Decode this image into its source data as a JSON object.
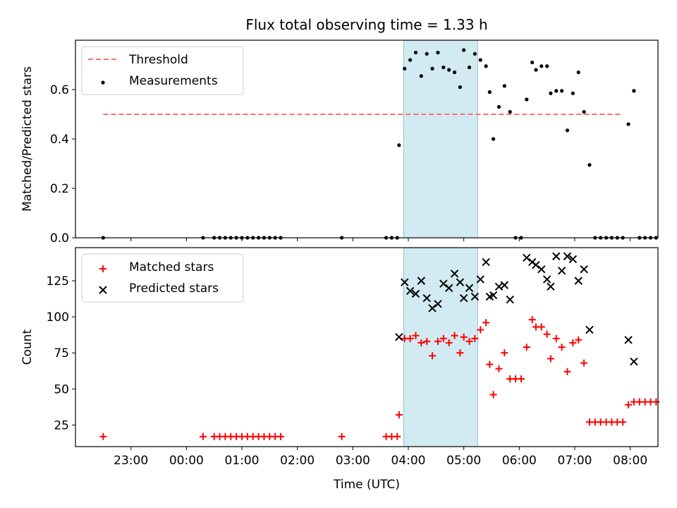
{
  "chart_data": [
    {
      "type": "scatter",
      "title": "Flux total observing time = 1.33 h",
      "xlabel": "",
      "ylabel": "Matched/Predicted stars",
      "ylim": [
        0,
        0.8
      ],
      "yticks": [
        0.0,
        0.2,
        0.4,
        0.6
      ],
      "yticklabels": [
        "0.0",
        "0.2",
        "0.4",
        "0.6"
      ],
      "legend_position": "top-left",
      "highlight_span": {
        "x0": "03:55",
        "x1": "05:15",
        "color": "#add8e6"
      },
      "threshold": {
        "name": "Threshold",
        "value": 0.5,
        "x0": "22:30",
        "x1": "07:50",
        "color": "#ff7070"
      },
      "series": [
        {
          "name": "Measurements",
          "marker": "dot",
          "color": "#000000",
          "points": [
            [
              "22:30",
              0.0
            ],
            [
              "00:18",
              0.0
            ],
            [
              "00:30",
              0.0
            ],
            [
              "00:36",
              0.0
            ],
            [
              "00:42",
              0.0
            ],
            [
              "00:48",
              0.0
            ],
            [
              "00:54",
              0.0
            ],
            [
              "01:00",
              0.0
            ],
            [
              "01:06",
              0.0
            ],
            [
              "01:12",
              0.0
            ],
            [
              "01:18",
              0.0
            ],
            [
              "01:24",
              0.0
            ],
            [
              "01:30",
              0.0
            ],
            [
              "01:36",
              0.0
            ],
            [
              "01:42",
              0.0
            ],
            [
              "02:48",
              0.0
            ],
            [
              "03:36",
              0.0
            ],
            [
              "03:42",
              0.0
            ],
            [
              "03:48",
              0.0
            ],
            [
              "03:50",
              0.375
            ],
            [
              "03:56",
              0.685
            ],
            [
              "04:02",
              0.72
            ],
            [
              "04:08",
              0.75
            ],
            [
              "04:14",
              0.655
            ],
            [
              "04:20",
              0.745
            ],
            [
              "04:26",
              0.685
            ],
            [
              "04:32",
              0.75
            ],
            [
              "04:38",
              0.69
            ],
            [
              "04:44",
              0.68
            ],
            [
              "04:50",
              0.67
            ],
            [
              "04:56",
              0.61
            ],
            [
              "05:00",
              0.76
            ],
            [
              "05:06",
              0.69
            ],
            [
              "05:12",
              0.745
            ],
            [
              "05:18",
              0.72
            ],
            [
              "05:24",
              0.695
            ],
            [
              "05:28",
              0.59
            ],
            [
              "05:32",
              0.4
            ],
            [
              "05:38",
              0.53
            ],
            [
              "05:44",
              0.615
            ],
            [
              "05:50",
              0.51
            ],
            [
              "05:56",
              0.0
            ],
            [
              "06:02",
              0.0
            ],
            [
              "06:08",
              0.56
            ],
            [
              "06:14",
              0.71
            ],
            [
              "06:18",
              0.68
            ],
            [
              "06:24",
              0.695
            ],
            [
              "06:30",
              0.695
            ],
            [
              "06:34",
              0.585
            ],
            [
              "06:40",
              0.595
            ],
            [
              "06:46",
              0.595
            ],
            [
              "06:52",
              0.435
            ],
            [
              "06:58",
              0.585
            ],
            [
              "07:04",
              0.67
            ],
            [
              "07:10",
              0.51
            ],
            [
              "07:16",
              0.295
            ],
            [
              "07:22",
              0.0
            ],
            [
              "07:28",
              0.0
            ],
            [
              "07:34",
              0.0
            ],
            [
              "07:40",
              0.0
            ],
            [
              "07:46",
              0.0
            ],
            [
              "07:52",
              0.0
            ],
            [
              "07:58",
              0.46
            ],
            [
              "08:04",
              0.595
            ],
            [
              "08:10",
              0.0
            ],
            [
              "08:16",
              0.0
            ],
            [
              "08:22",
              0.0
            ],
            [
              "08:28",
              0.0
            ]
          ]
        }
      ]
    },
    {
      "type": "scatter",
      "xlabel": "Time (UTC)",
      "ylabel": "Count",
      "ylim": [
        10,
        148
      ],
      "yticks": [
        25,
        50,
        75,
        100,
        125
      ],
      "yticklabels": [
        "25",
        "50",
        "75",
        "100",
        "125"
      ],
      "xlim": [
        "22:00",
        "08:30"
      ],
      "xticklabels": [
        "23:00",
        "00:00",
        "01:00",
        "02:00",
        "03:00",
        "04:00",
        "05:00",
        "06:00",
        "07:00",
        "08:00"
      ],
      "legend_position": "top-left",
      "highlight_span": {
        "x0": "03:55",
        "x1": "05:15",
        "color": "#add8e6"
      },
      "series": [
        {
          "name": "Matched stars",
          "marker": "plus",
          "color": "#ff0000",
          "points": [
            [
              "22:30",
              17
            ],
            [
              "00:18",
              17
            ],
            [
              "00:30",
              17
            ],
            [
              "00:36",
              17
            ],
            [
              "00:42",
              17
            ],
            [
              "00:48",
              17
            ],
            [
              "00:54",
              17
            ],
            [
              "01:00",
              17
            ],
            [
              "01:06",
              17
            ],
            [
              "01:12",
              17
            ],
            [
              "01:18",
              17
            ],
            [
              "01:24",
              17
            ],
            [
              "01:30",
              17
            ],
            [
              "01:36",
              17
            ],
            [
              "01:42",
              17
            ],
            [
              "02:48",
              17
            ],
            [
              "03:36",
              17
            ],
            [
              "03:42",
              17
            ],
            [
              "03:48",
              17
            ],
            [
              "03:50",
              32
            ],
            [
              "03:56",
              85
            ],
            [
              "04:02",
              85
            ],
            [
              "04:08",
              87
            ],
            [
              "04:14",
              82
            ],
            [
              "04:20",
              83
            ],
            [
              "04:26",
              73
            ],
            [
              "04:32",
              83
            ],
            [
              "04:38",
              85
            ],
            [
              "04:44",
              82
            ],
            [
              "04:50",
              87
            ],
            [
              "04:56",
              75
            ],
            [
              "05:00",
              86
            ],
            [
              "05:06",
              83
            ],
            [
              "05:12",
              85
            ],
            [
              "05:18",
              91
            ],
            [
              "05:24",
              96
            ],
            [
              "05:28",
              67
            ],
            [
              "05:32",
              46
            ],
            [
              "05:38",
              64
            ],
            [
              "05:44",
              75
            ],
            [
              "05:50",
              57
            ],
            [
              "05:56",
              57
            ],
            [
              "06:02",
              57
            ],
            [
              "06:08",
              79
            ],
            [
              "06:14",
              98
            ],
            [
              "06:18",
              93
            ],
            [
              "06:24",
              93
            ],
            [
              "06:30",
              88
            ],
            [
              "06:34",
              71
            ],
            [
              "06:40",
              85
            ],
            [
              "06:46",
              79
            ],
            [
              "06:52",
              62
            ],
            [
              "06:58",
              82
            ],
            [
              "07:04",
              84
            ],
            [
              "07:10",
              68
            ],
            [
              "07:16",
              27
            ],
            [
              "07:22",
              27
            ],
            [
              "07:28",
              27
            ],
            [
              "07:34",
              27
            ],
            [
              "07:40",
              27
            ],
            [
              "07:46",
              27
            ],
            [
              "07:52",
              27
            ],
            [
              "07:58",
              39
            ],
            [
              "08:04",
              41
            ],
            [
              "08:10",
              41
            ],
            [
              "08:16",
              41
            ],
            [
              "08:22",
              41
            ],
            [
              "08:28",
              41
            ]
          ]
        },
        {
          "name": "Predicted stars",
          "marker": "x",
          "color": "#000000",
          "points": [
            [
              "03:50",
              86
            ],
            [
              "03:56",
              124
            ],
            [
              "04:02",
              118
            ],
            [
              "04:08",
              116
            ],
            [
              "04:14",
              125
            ],
            [
              "04:20",
              113
            ],
            [
              "04:26",
              106
            ],
            [
              "04:32",
              109
            ],
            [
              "04:38",
              123
            ],
            [
              "04:44",
              120
            ],
            [
              "04:50",
              130
            ],
            [
              "04:56",
              124
            ],
            [
              "05:00",
              113
            ],
            [
              "05:06",
              120
            ],
            [
              "05:12",
              114
            ],
            [
              "05:18",
              126
            ],
            [
              "05:24",
              138
            ],
            [
              "05:28",
              114
            ],
            [
              "05:32",
              115
            ],
            [
              "05:38",
              121
            ],
            [
              "05:44",
              122
            ],
            [
              "05:50",
              112
            ],
            [
              "06:08",
              141
            ],
            [
              "06:14",
              138
            ],
            [
              "06:18",
              136
            ],
            [
              "06:24",
              133
            ],
            [
              "06:30",
              126
            ],
            [
              "06:34",
              121
            ],
            [
              "06:40",
              142
            ],
            [
              "06:46",
              132
            ],
            [
              "06:52",
              142
            ],
            [
              "06:58",
              140
            ],
            [
              "07:04",
              125
            ],
            [
              "07:10",
              133
            ],
            [
              "07:16",
              91
            ],
            [
              "07:58",
              84
            ],
            [
              "08:04",
              69
            ]
          ]
        }
      ]
    }
  ]
}
